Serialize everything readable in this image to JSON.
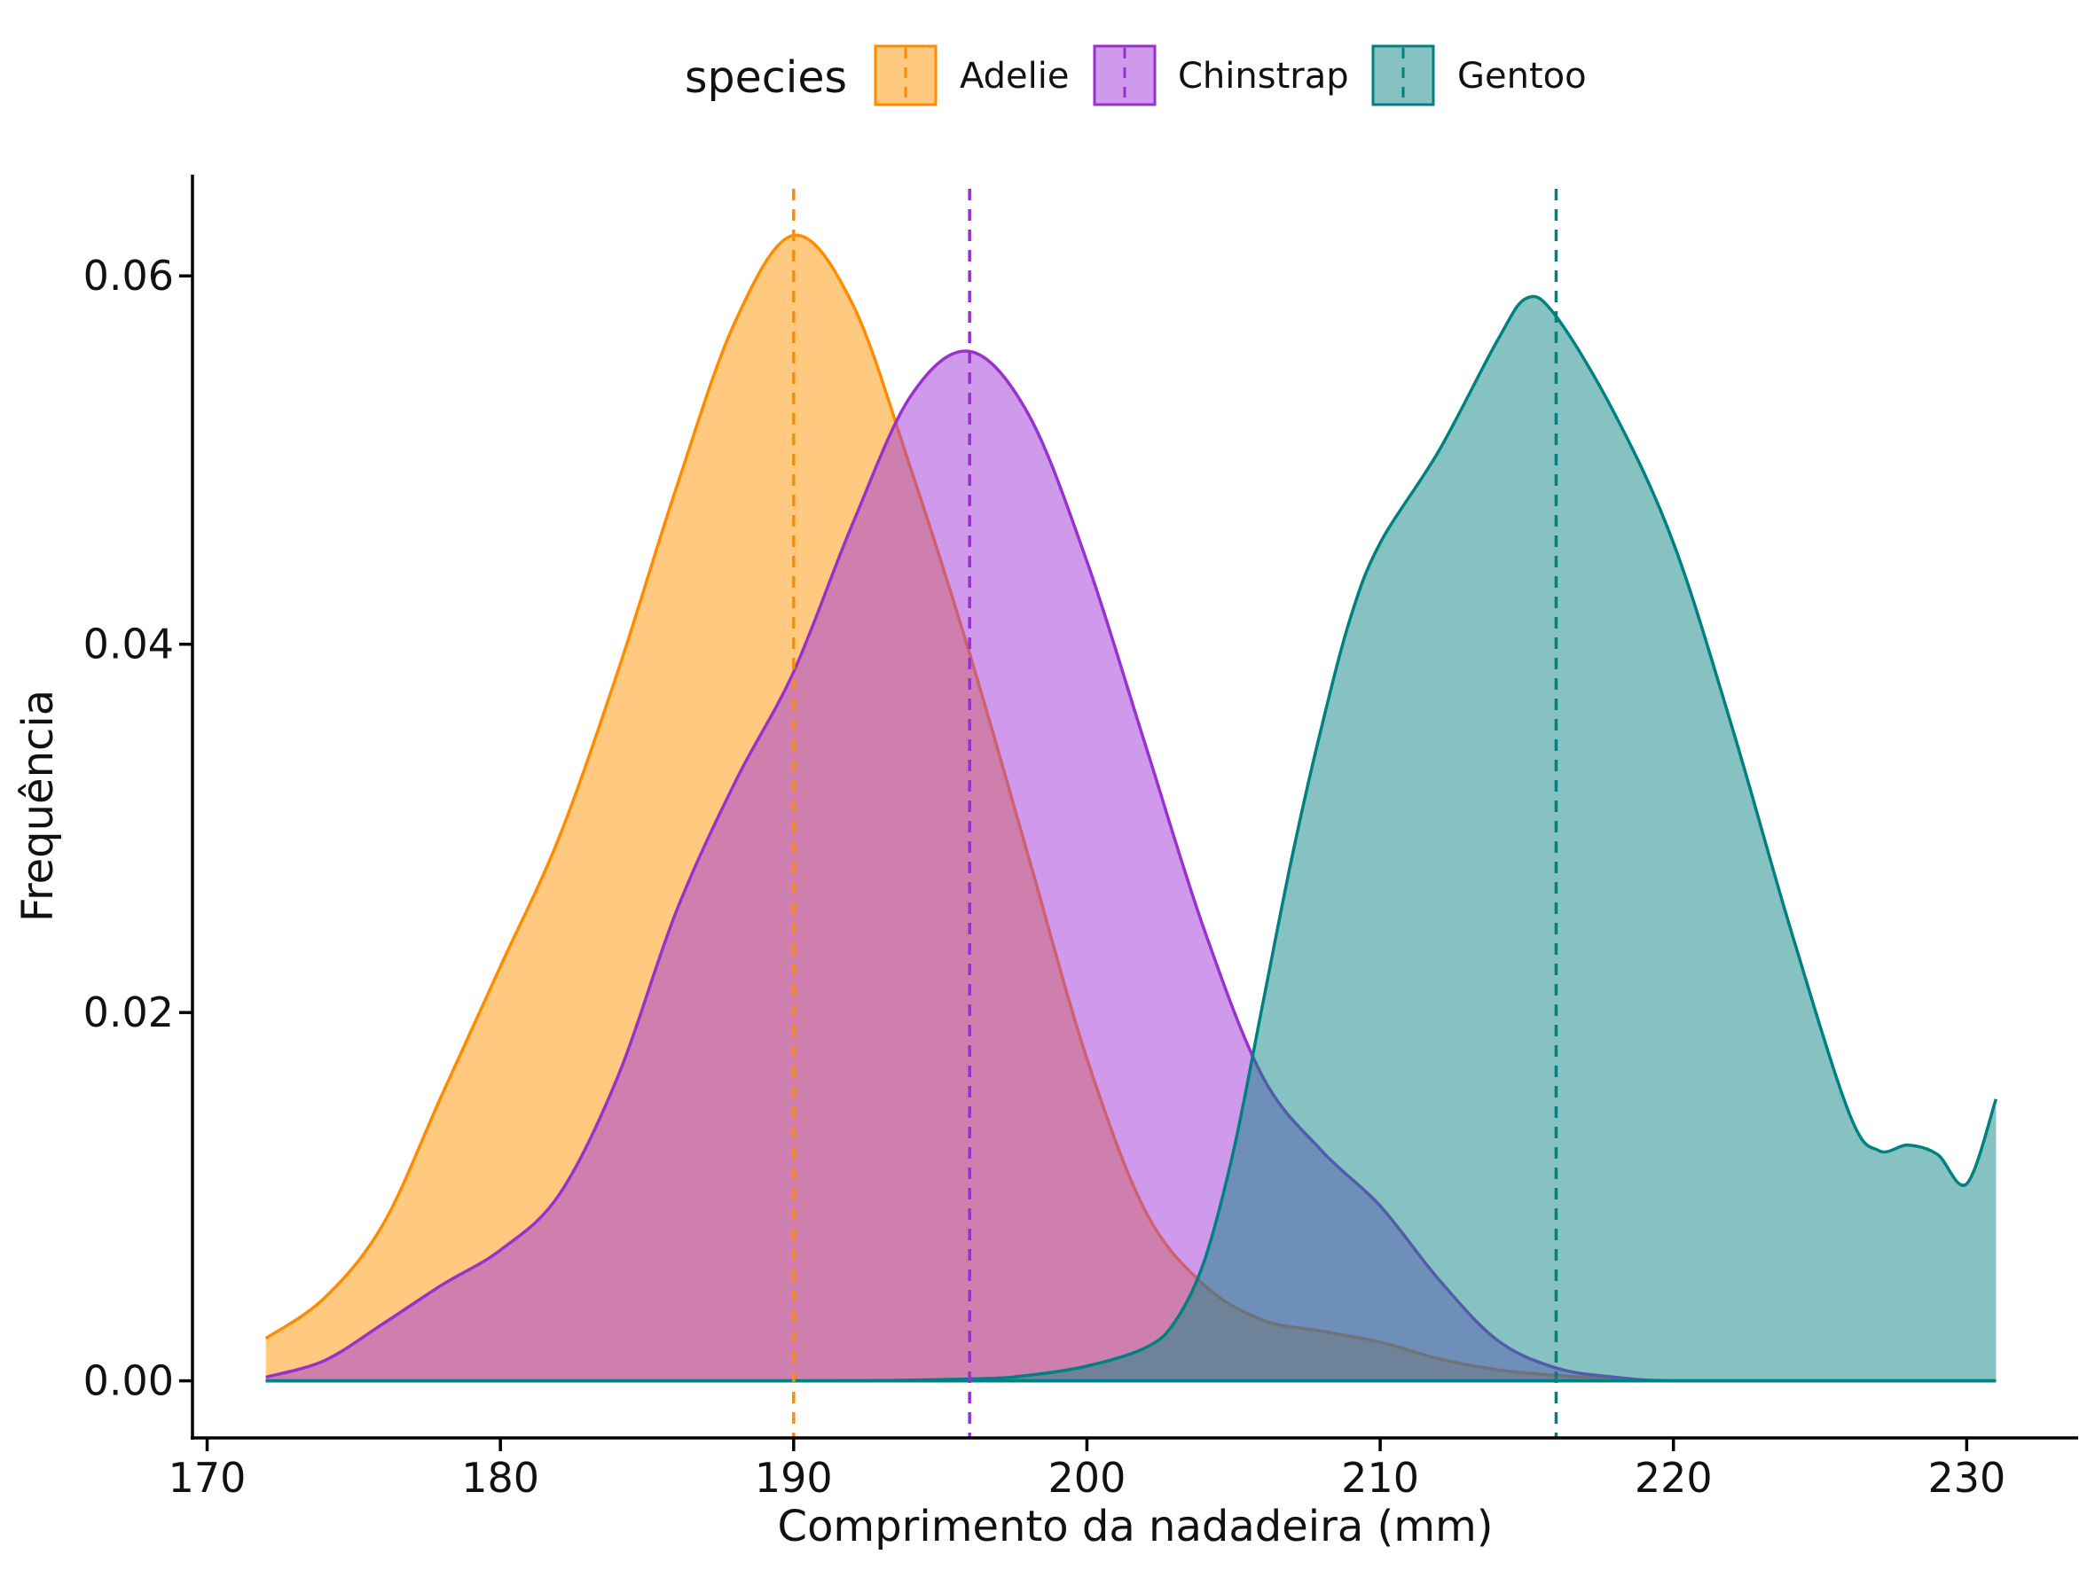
{
  "chart_data": {
    "type": "area",
    "subtype": "density",
    "title": "",
    "xlabel": "Comprimento da nadadeira (mm)",
    "ylabel": "Frequência",
    "xlim": [
      169.5,
      233.8
    ],
    "ylim": [
      -0.0031,
      0.0655
    ],
    "x_ticks": [
      170,
      180,
      190,
      200,
      210,
      220,
      230
    ],
    "x_tick_labels": [
      "170",
      "180",
      "190",
      "200",
      "210",
      "220",
      "230"
    ],
    "y_ticks": [
      0.0,
      0.02,
      0.04,
      0.06
    ],
    "y_tick_labels": [
      "0.00",
      "0.02",
      "0.04",
      "0.06"
    ],
    "grid": false,
    "legend": {
      "title": "species",
      "position": "top",
      "entries": [
        "Adelie",
        "Chinstrap",
        "Gentoo"
      ]
    },
    "series": [
      {
        "name": "Adelie",
        "color": "#FF8C00",
        "fill_color": "#FFA62B",
        "mean": 190,
        "x": [
          172,
          174,
          176,
          178,
          180,
          182,
          184,
          186,
          188,
          190,
          192,
          194,
          196,
          198,
          200,
          202,
          204,
          206,
          208,
          210,
          212,
          214,
          216,
          218,
          220,
          225,
          231
        ],
        "y": [
          0.0023,
          0.0045,
          0.0085,
          0.0155,
          0.0225,
          0.0295,
          0.0385,
          0.0485,
          0.0575,
          0.0622,
          0.0585,
          0.0495,
          0.0395,
          0.0285,
          0.0175,
          0.0092,
          0.0052,
          0.0033,
          0.0027,
          0.0021,
          0.0012,
          0.0006,
          0.0003,
          0.0001,
          0.0,
          0.0,
          0.0
        ]
      },
      {
        "name": "Chinstrap",
        "color": "#9932CC",
        "fill_color": "#A034D9",
        "mean": 196,
        "x": [
          172,
          174,
          176,
          178,
          180,
          182,
          184,
          186,
          188,
          190,
          192,
          194,
          196,
          198,
          200,
          202,
          204,
          206,
          208,
          210,
          212,
          214,
          216,
          218,
          220,
          225,
          231
        ],
        "y": [
          0.0002,
          0.0011,
          0.0031,
          0.0052,
          0.0071,
          0.0101,
          0.0165,
          0.0255,
          0.0325,
          0.0385,
          0.0465,
          0.0535,
          0.0559,
          0.0525,
          0.0445,
          0.0345,
          0.0245,
          0.0165,
          0.0125,
          0.0095,
          0.0055,
          0.0022,
          0.0007,
          0.0002,
          0.0,
          0.0,
          0.0
        ]
      },
      {
        "name": "Gentoo",
        "color": "#008080",
        "fill_color": "#0D8686",
        "mean": 216,
        "x": [
          172,
          190,
          196,
          198,
          200,
          202,
          203,
          204,
          205,
          206,
          207,
          208,
          209,
          210,
          212,
          214,
          215,
          216,
          218,
          220,
          222,
          224,
          226,
          227,
          228,
          229,
          230,
          231
        ],
        "y": [
          0.0,
          0.0,
          0.0001,
          0.0003,
          0.0008,
          0.0018,
          0.0032,
          0.0065,
          0.0125,
          0.0205,
          0.0285,
          0.0355,
          0.0415,
          0.0455,
          0.0505,
          0.0565,
          0.0588,
          0.0578,
          0.0525,
          0.0455,
          0.0355,
          0.0245,
          0.0145,
          0.0125,
          0.0128,
          0.0123,
          0.0107,
          0.0153
        ]
      }
    ]
  }
}
